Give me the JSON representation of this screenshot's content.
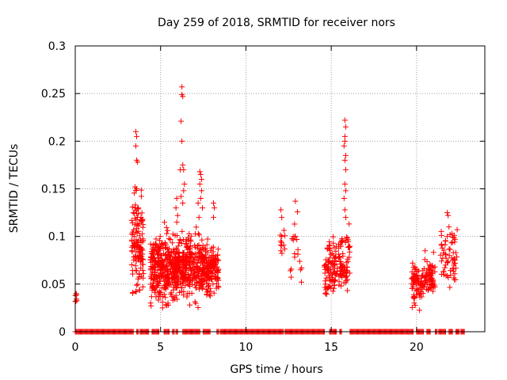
{
  "chart_data": {
    "type": "scatter",
    "title": "Day 259 of 2018, SRMTID for receiver nors",
    "xlabel": "GPS time / hours",
    "ylabel": "SRMTID / TECUs",
    "xlim": [
      0,
      24
    ],
    "ylim": [
      0,
      0.3
    ],
    "xticks": [
      0,
      5,
      10,
      15,
      20
    ],
    "xtick_labels": [
      "0",
      "5",
      "10",
      "15",
      "20"
    ],
    "yticks": [
      0,
      0.05,
      0.1,
      0.15,
      0.2,
      0.25,
      0.3
    ],
    "ytick_labels": [
      "0",
      "0.05",
      "0.1",
      "0.15",
      "0.2",
      "0.25",
      "0.3"
    ],
    "grid": true,
    "marker": "+",
    "color": "#ff0000",
    "zero_segments": [
      [
        0.0,
        3.4
      ],
      [
        3.6,
        3.7
      ],
      [
        3.8,
        4.3
      ],
      [
        4.5,
        4.9
      ],
      [
        5.2,
        5.5
      ],
      [
        5.7,
        5.8
      ],
      [
        5.9,
        6.0
      ],
      [
        6.3,
        7.3
      ],
      [
        7.5,
        7.9
      ],
      [
        8.3,
        8.4
      ],
      [
        8.5,
        12.2
      ],
      [
        12.3,
        14.6
      ],
      [
        14.9,
        15.3
      ],
      [
        15.5,
        15.6
      ],
      [
        16.1,
        19.8
      ],
      [
        20.0,
        20.4
      ],
      [
        20.6,
        20.8
      ],
      [
        21.1,
        21.2
      ],
      [
        21.3,
        21.7
      ],
      [
        21.9,
        22.1
      ],
      [
        22.3,
        22.5
      ],
      [
        22.6,
        22.8
      ]
    ],
    "clusters": [
      {
        "x": [
          0.0,
          0.1
        ],
        "y": [
          0.025,
          0.045
        ],
        "n": 6
      },
      {
        "x": [
          3.3,
          4.0
        ],
        "y": [
          0.02,
          0.16
        ],
        "n": 130
      },
      {
        "x": [
          4.4,
          5.4
        ],
        "y": [
          0.015,
          0.12
        ],
        "n": 220
      },
      {
        "x": [
          5.4,
          6.4
        ],
        "y": [
          0.02,
          0.11
        ],
        "n": 220
      },
      {
        "x": [
          6.4,
          7.5
        ],
        "y": [
          0.02,
          0.12
        ],
        "n": 200
      },
      {
        "x": [
          7.5,
          8.4
        ],
        "y": [
          0.03,
          0.1
        ],
        "n": 160
      },
      {
        "x": [
          12.0,
          12.3
        ],
        "y": [
          0.06,
          0.13
        ],
        "n": 10
      },
      {
        "x": [
          12.6,
          13.3
        ],
        "y": [
          0.035,
          0.14
        ],
        "n": 14
      },
      {
        "x": [
          14.6,
          15.4
        ],
        "y": [
          0.025,
          0.11
        ],
        "n": 90
      },
      {
        "x": [
          15.4,
          16.1
        ],
        "y": [
          0.03,
          0.12
        ],
        "n": 80
      },
      {
        "x": [
          19.7,
          20.4
        ],
        "y": [
          0.02,
          0.08
        ],
        "n": 80
      },
      {
        "x": [
          20.4,
          21.1
        ],
        "y": [
          0.025,
          0.085
        ],
        "n": 70
      },
      {
        "x": [
          21.4,
          22.4
        ],
        "y": [
          0.035,
          0.12
        ],
        "n": 60
      }
    ],
    "points": [
      [
        0.05,
        0.04
      ],
      [
        3.55,
        0.21
      ],
      [
        3.6,
        0.205
      ],
      [
        3.55,
        0.195
      ],
      [
        3.6,
        0.18
      ],
      [
        3.65,
        0.178
      ],
      [
        3.5,
        0.152
      ],
      [
        3.6,
        0.15
      ],
      [
        3.4,
        0.125
      ],
      [
        3.5,
        0.13
      ],
      [
        3.5,
        0.119
      ],
      [
        3.45,
        0.1
      ],
      [
        6.25,
        0.257
      ],
      [
        6.25,
        0.249
      ],
      [
        6.3,
        0.247
      ],
      [
        6.2,
        0.221
      ],
      [
        6.25,
        0.2
      ],
      [
        6.3,
        0.175
      ],
      [
        6.35,
        0.17
      ],
      [
        6.15,
        0.17
      ],
      [
        6.4,
        0.155
      ],
      [
        6.35,
        0.148
      ],
      [
        6.2,
        0.142
      ],
      [
        6.3,
        0.135
      ],
      [
        7.3,
        0.168
      ],
      [
        7.35,
        0.165
      ],
      [
        7.4,
        0.16
      ],
      [
        7.3,
        0.155
      ],
      [
        7.4,
        0.148
      ],
      [
        7.35,
        0.14
      ],
      [
        7.2,
        0.135
      ],
      [
        7.25,
        0.12
      ],
      [
        7.45,
        0.13
      ],
      [
        8.1,
        0.135
      ],
      [
        8.15,
        0.13
      ],
      [
        8.1,
        0.12
      ],
      [
        5.95,
        0.14
      ],
      [
        5.9,
        0.13
      ],
      [
        6.0,
        0.122
      ],
      [
        5.95,
        0.115
      ],
      [
        15.8,
        0.222
      ],
      [
        15.85,
        0.215
      ],
      [
        15.8,
        0.205
      ],
      [
        15.8,
        0.2
      ],
      [
        15.75,
        0.195
      ],
      [
        15.85,
        0.185
      ],
      [
        15.8,
        0.18
      ],
      [
        15.85,
        0.17
      ],
      [
        15.8,
        0.155
      ],
      [
        15.85,
        0.148
      ],
      [
        15.75,
        0.14
      ],
      [
        15.8,
        0.128
      ],
      [
        15.85,
        0.12
      ],
      [
        12.05,
        0.128
      ],
      [
        12.1,
        0.12
      ],
      [
        12.1,
        0.1
      ],
      [
        12.05,
        0.085
      ],
      [
        12.9,
        0.137
      ],
      [
        12.85,
        0.113
      ],
      [
        12.9,
        0.1
      ],
      [
        12.85,
        0.082
      ],
      [
        13.2,
        0.065
      ],
      [
        13.25,
        0.052
      ],
      [
        21.8,
        0.125
      ],
      [
        21.85,
        0.122
      ],
      [
        21.9,
        0.11
      ],
      [
        21.8,
        0.1
      ],
      [
        21.7,
        0.095
      ],
      [
        22.3,
        0.083
      ],
      [
        22.25,
        0.075
      ],
      [
        20.5,
        0.085
      ]
    ]
  }
}
